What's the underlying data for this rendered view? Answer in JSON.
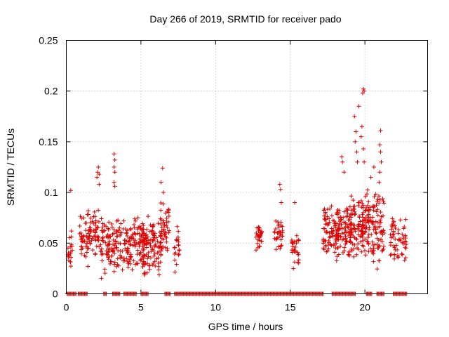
{
  "chart_data": {
    "type": "scatter",
    "title": "Day 266 of 2019, SRMTID for receiver pado",
    "xlabel": "GPS time / hours",
    "ylabel": "SRMTID / TECUs",
    "xlim": [
      0,
      24.2
    ],
    "ylim": [
      0,
      0.25
    ],
    "x_ticks": [
      "0",
      "5",
      "10",
      "15",
      "20"
    ],
    "y_ticks": [
      "0",
      "0.05",
      "0.1",
      "0.15",
      "0.2",
      "0.25"
    ],
    "grid": true,
    "marker": "plus",
    "marker_color": "#e00000",
    "series": [
      {
        "name": "SRMTID",
        "clusters": [
          {
            "x_range": [
              0.1,
              0.4
            ],
            "y_range": [
              0.015,
              0.085
            ],
            "count": 20
          },
          {
            "x_range": [
              0.9,
              1.6
            ],
            "y_range": [
              0.025,
              0.085
            ],
            "count": 40
          },
          {
            "x_range": [
              1.4,
              2.2
            ],
            "y_range": [
              0.035,
              0.085
            ],
            "count": 55
          },
          {
            "x_range": [
              2.3,
              2.8
            ],
            "y_range": [
              0.015,
              0.08
            ],
            "count": 35
          },
          {
            "x_range": [
              2.8,
              3.5
            ],
            "y_range": [
              0.02,
              0.075
            ],
            "count": 55
          },
          {
            "x_range": [
              3.5,
              4.4
            ],
            "y_range": [
              0.02,
              0.075
            ],
            "count": 65
          },
          {
            "x_range": [
              4.4,
              5.2
            ],
            "y_range": [
              0.02,
              0.085
            ],
            "count": 60
          },
          {
            "x_range": [
              5.1,
              6.4
            ],
            "y_range": [
              0.015,
              0.08
            ],
            "count": 110
          },
          {
            "x_range": [
              6.3,
              6.9
            ],
            "y_range": [
              0.03,
              0.095
            ],
            "count": 45
          },
          {
            "x_range": [
              7.2,
              7.6
            ],
            "y_range": [
              0.02,
              0.07
            ],
            "count": 20
          },
          {
            "x_range": [
              12.7,
              13.1
            ],
            "y_range": [
              0.04,
              0.07
            ],
            "count": 30
          },
          {
            "x_range": [
              13.9,
              14.5
            ],
            "y_range": [
              0.04,
              0.08
            ],
            "count": 35
          },
          {
            "x_range": [
              15.1,
              15.6
            ],
            "y_range": [
              0.02,
              0.065
            ],
            "count": 30
          },
          {
            "x_range": [
              17.2,
              18.2
            ],
            "y_range": [
              0.03,
              0.09
            ],
            "count": 80
          },
          {
            "x_range": [
              18.1,
              19.1
            ],
            "y_range": [
              0.03,
              0.095
            ],
            "count": 90
          },
          {
            "x_range": [
              19.0,
              19.9
            ],
            "y_range": [
              0.03,
              0.1
            ],
            "count": 80
          },
          {
            "x_range": [
              19.8,
              20.6
            ],
            "y_range": [
              0.03,
              0.11
            ],
            "count": 75
          },
          {
            "x_range": [
              20.5,
              21.3
            ],
            "y_range": [
              0.02,
              0.1
            ],
            "count": 65
          },
          {
            "x_range": [
              21.7,
              22.8
            ],
            "y_range": [
              0.03,
              0.08
            ],
            "count": 60
          }
        ],
        "outliers": [
          {
            "x": 2.1,
            "y": 0.12
          },
          {
            "x": 2.2,
            "y": 0.118
          },
          {
            "x": 2.15,
            "y": 0.125
          },
          {
            "x": 2.05,
            "y": 0.115
          },
          {
            "x": 2.2,
            "y": 0.108
          },
          {
            "x": 3.2,
            "y": 0.138
          },
          {
            "x": 3.25,
            "y": 0.132
          },
          {
            "x": 3.2,
            "y": 0.125
          },
          {
            "x": 3.25,
            "y": 0.12
          },
          {
            "x": 3.2,
            "y": 0.11
          },
          {
            "x": 3.25,
            "y": 0.106
          },
          {
            "x": 6.35,
            "y": 0.11
          },
          {
            "x": 6.45,
            "y": 0.124
          },
          {
            "x": 6.5,
            "y": 0.1
          },
          {
            "x": 0.3,
            "y": 0.102
          },
          {
            "x": 14.3,
            "y": 0.108
          },
          {
            "x": 14.35,
            "y": 0.103
          },
          {
            "x": 14.4,
            "y": 0.09
          },
          {
            "x": 15.3,
            "y": 0.09
          },
          {
            "x": 18.5,
            "y": 0.13
          },
          {
            "x": 18.45,
            "y": 0.135
          },
          {
            "x": 18.6,
            "y": 0.12
          },
          {
            "x": 19.3,
            "y": 0.175
          },
          {
            "x": 19.4,
            "y": 0.16
          },
          {
            "x": 19.35,
            "y": 0.15
          },
          {
            "x": 19.45,
            "y": 0.14
          },
          {
            "x": 19.5,
            "y": 0.13
          },
          {
            "x": 19.6,
            "y": 0.185
          },
          {
            "x": 19.9,
            "y": 0.202
          },
          {
            "x": 19.85,
            "y": 0.198
          },
          {
            "x": 19.95,
            "y": 0.2
          },
          {
            "x": 19.8,
            "y": 0.165
          },
          {
            "x": 19.75,
            "y": 0.155
          },
          {
            "x": 19.9,
            "y": 0.143
          },
          {
            "x": 19.95,
            "y": 0.13
          },
          {
            "x": 20.6,
            "y": 0.125
          },
          {
            "x": 20.4,
            "y": 0.115
          },
          {
            "x": 21.05,
            "y": 0.161
          },
          {
            "x": 21.0,
            "y": 0.147
          },
          {
            "x": 21.05,
            "y": 0.14
          },
          {
            "x": 21.1,
            "y": 0.13
          },
          {
            "x": 21.0,
            "y": 0.12
          },
          {
            "x": 20.95,
            "y": 0.11
          }
        ],
        "zero_ranges": [
          [
            0.05,
            0.7
          ],
          [
            0.8,
            1.4
          ],
          [
            2.5,
            2.7
          ],
          [
            3.1,
            3.6
          ],
          [
            3.85,
            4.7
          ],
          [
            5.0,
            5.5
          ],
          [
            6.6,
            7.0
          ],
          [
            7.25,
            17.25
          ],
          [
            17.8,
            19.4
          ],
          [
            20.1,
            20.5
          ],
          [
            20.8,
            21.3
          ],
          [
            21.9,
            22.85
          ]
        ]
      }
    ]
  }
}
